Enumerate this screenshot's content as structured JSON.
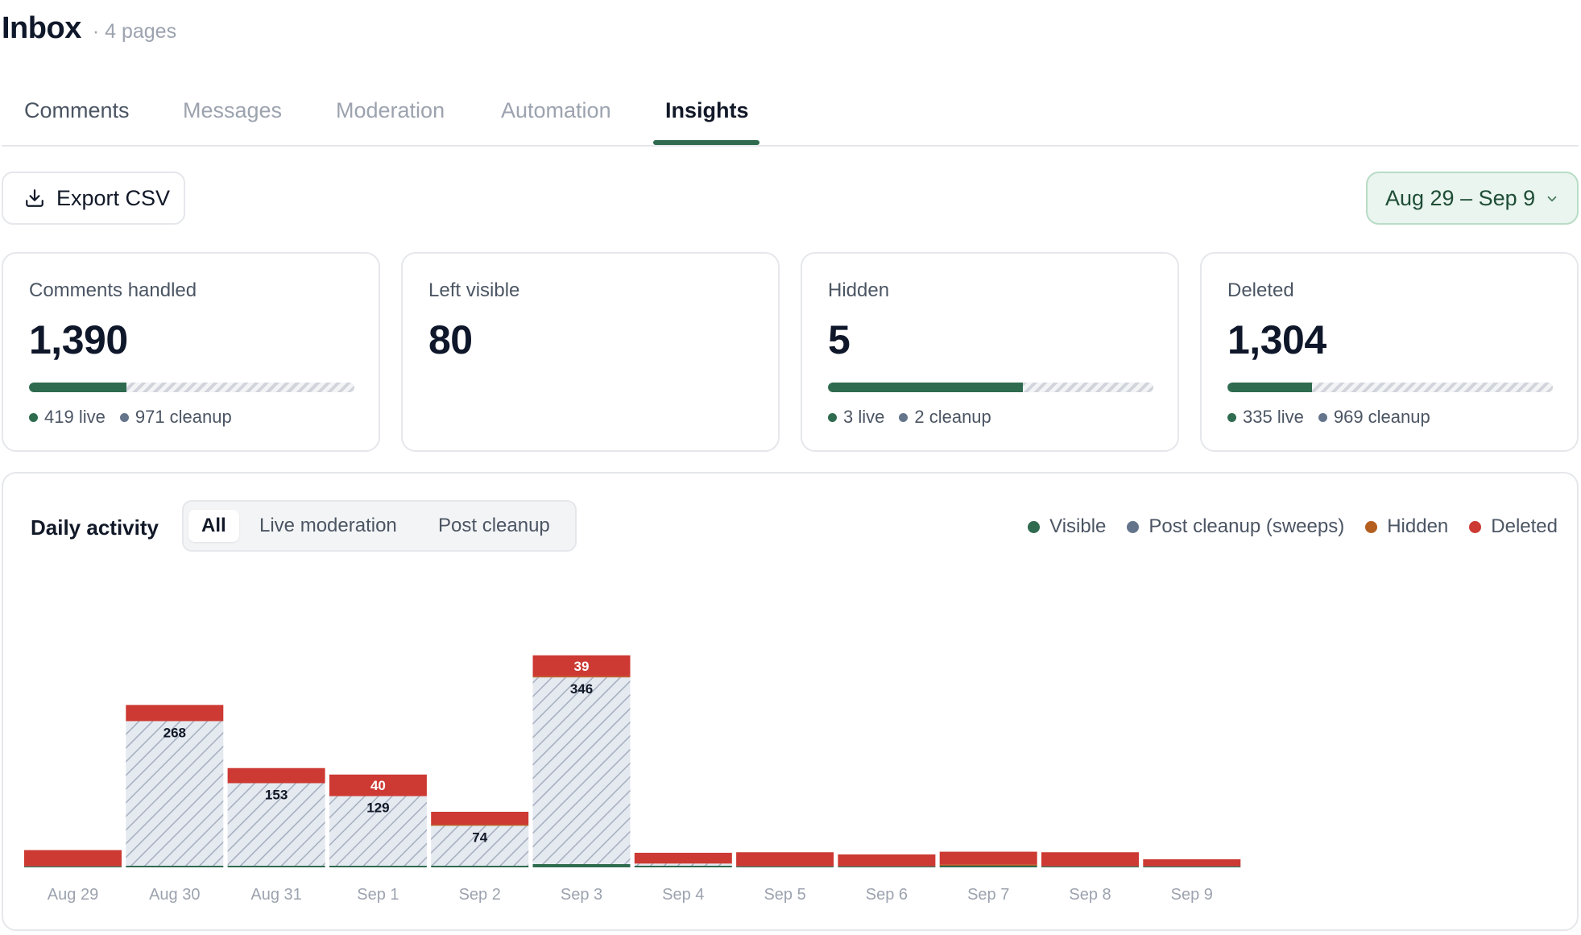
{
  "header": {
    "title": "Inbox",
    "subtitle": "· 4 pages"
  },
  "tabs": [
    {
      "label": "Comments"
    },
    {
      "label": "Messages"
    },
    {
      "label": "Moderation"
    },
    {
      "label": "Automation"
    },
    {
      "label": "Insights",
      "active": true
    }
  ],
  "toolbar": {
    "export_label": "Export CSV",
    "date_range": "Aug 29 – Sep 9"
  },
  "kpis": [
    {
      "label": "Comments handled",
      "value": "1,390",
      "live_fraction": 0.3,
      "live": "419 live",
      "cleanup": "971 cleanup"
    },
    {
      "label": "Left visible",
      "value": "80"
    },
    {
      "label": "Hidden",
      "value": "5",
      "live_fraction": 0.6,
      "live": "3 live",
      "cleanup": "2 cleanup"
    },
    {
      "label": "Deleted",
      "value": "1,304",
      "live_fraction": 0.26,
      "live": "335 live",
      "cleanup": "969 cleanup"
    }
  ],
  "activity": {
    "title": "Daily activity",
    "filters": [
      "All",
      "Live moderation",
      "Post cleanup"
    ],
    "active_filter": "All"
  },
  "colors": {
    "visible": "#2f6b4f",
    "cleanup": "#64748b",
    "hidden": "#b45f1f",
    "deleted": "#cc3a33",
    "accent": "#2f6b4f"
  },
  "chart_data": {
    "type": "bar",
    "stacked": true,
    "categories": [
      "Aug 29",
      "Aug 30",
      "Aug 31",
      "Sep 1",
      "Sep 2",
      "Sep 3",
      "Sep 4",
      "Sep 5",
      "Sep 6",
      "Sep 7",
      "Sep 8",
      "Sep 9"
    ],
    "legend": [
      "Visible",
      "Post cleanup (sweeps)",
      "Hidden",
      "Deleted"
    ],
    "legend_position": "top-right",
    "grid": false,
    "series": [
      {
        "name": "Visible",
        "values": [
          2,
          3,
          3,
          3,
          3,
          6,
          3,
          2,
          2,
          3,
          2,
          2
        ]
      },
      {
        "name": "Post cleanup (sweeps)",
        "values": [
          0,
          268,
          153,
          129,
          74,
          346,
          4,
          0,
          0,
          0,
          0,
          0
        ]
      },
      {
        "name": "Hidden",
        "values": [
          0,
          0,
          0,
          0,
          2,
          2,
          0,
          0,
          0,
          2,
          0,
          0
        ]
      },
      {
        "name": "Deleted",
        "values": [
          30,
          30,
          28,
          40,
          24,
          39,
          20,
          26,
          22,
          24,
          26,
          13
        ]
      }
    ],
    "labels": {
      "cleanup": [
        null,
        "268",
        "153",
        "129",
        "74",
        "346",
        null,
        null,
        null,
        null,
        null,
        null
      ],
      "deleted": [
        null,
        null,
        null,
        "40",
        null,
        "39",
        null,
        null,
        null,
        null,
        null,
        null
      ]
    }
  }
}
